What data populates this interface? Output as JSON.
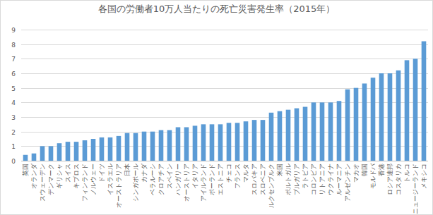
{
  "chart_data": {
    "type": "bar",
    "title": "各国の労働者10万人当たりの死亡災害発生率（2015年）",
    "categories": [
      "英国",
      "オランダ",
      "スウェーデン",
      "デンマーク",
      "ギリシャ",
      "スイス",
      "キプロス",
      "フィンランド",
      "ノルウェー",
      "ドイツ",
      "イスラエル",
      "オーストラリア",
      "日本",
      "シンガポール",
      "カナダ",
      "ベラルーシ",
      "クロアチア",
      "スペイン",
      "ハンガリー",
      "オーストリア",
      "イタリア",
      "アイルランド",
      "ポーランド",
      "エストニア",
      "チェコ",
      "フランス",
      "マルタ",
      "スロバキア",
      "スロベニア",
      "ルクセンブルク",
      "米国",
      "ポルトガル",
      "ブルガリア",
      "ラトビア",
      "コロンビア",
      "リトアニア",
      "ウクライナ",
      "ルーマニア",
      "アルゼンチン",
      "マカオ",
      "韓国",
      "モルドバ",
      "香港",
      "ロシア連邦",
      "コスタリカ",
      "トルコ",
      "ニュージーランド",
      "メキシコ"
    ],
    "values": [
      0.4,
      0.5,
      1.0,
      1.0,
      1.2,
      1.3,
      1.3,
      1.4,
      1.5,
      1.6,
      1.6,
      1.7,
      1.9,
      1.9,
      2.0,
      2.0,
      2.1,
      2.1,
      2.3,
      2.3,
      2.4,
      2.5,
      2.5,
      2.5,
      2.6,
      2.6,
      2.7,
      2.8,
      2.8,
      3.3,
      3.4,
      3.5,
      3.6,
      3.7,
      4.0,
      4.0,
      4.0,
      4.1,
      4.9,
      5.0,
      5.3,
      5.7,
      6.0,
      6.0,
      6.2,
      6.9,
      7.0,
      8.2
    ],
    "color": "#5b9bd5",
    "ylim": [
      0,
      9
    ],
    "yticks": [
      0,
      1,
      2,
      3,
      4,
      5,
      6,
      7,
      8,
      9
    ],
    "grid": true
  }
}
